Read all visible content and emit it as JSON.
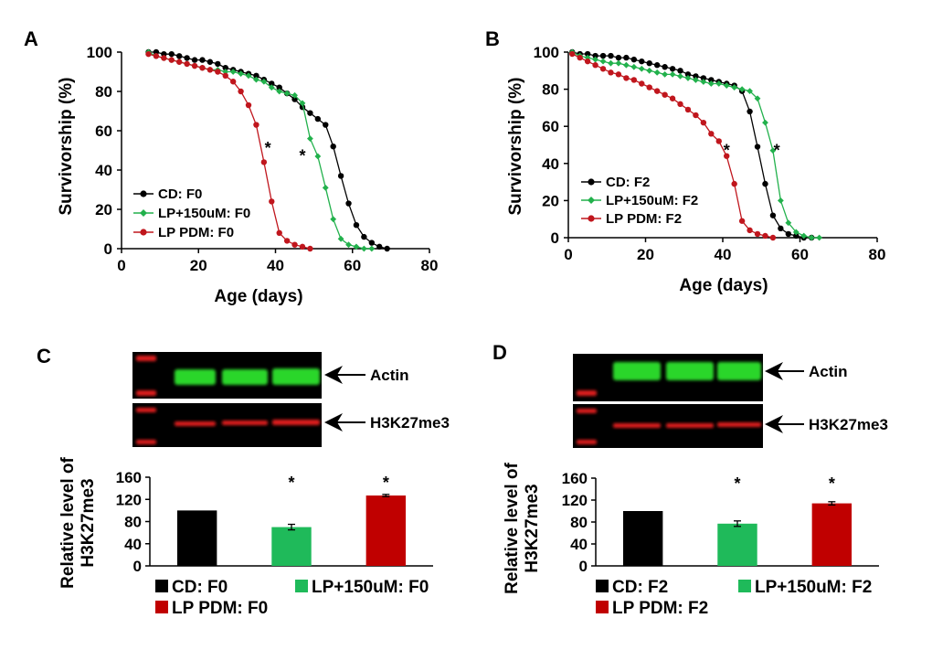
{
  "panels": {
    "A": "A",
    "B": "B",
    "C": "C",
    "D": "D"
  },
  "colors": {
    "cd": "#000000",
    "lp150": "#22b14c",
    "lppdm": "#c0161d",
    "bar_green": "#1fba5a",
    "bar_red": "#c00000",
    "blot_green": "#2ad62a",
    "blot_red": "#e01e1e"
  },
  "chart_data": [
    {
      "id": "A",
      "type": "line",
      "xlabel": "Age (days)",
      "ylabel": "Survivorship (%)",
      "xlim": [
        0,
        80
      ],
      "ylim": [
        0,
        100
      ],
      "xticks": [
        "0",
        "20",
        "40",
        "60",
        "80"
      ],
      "yticks": [
        "0",
        "20",
        "40",
        "60",
        "80",
        "100"
      ],
      "legend_position": "bottom-left",
      "series": [
        {
          "name": "CD: F0",
          "color": "#000000",
          "x": [
            7,
            9,
            11,
            13,
            15,
            17,
            19,
            21,
            23,
            25,
            27,
            29,
            31,
            33,
            35,
            37,
            39,
            41,
            43,
            45,
            47,
            49,
            51,
            53,
            55,
            57,
            59,
            61,
            63,
            65,
            67,
            69
          ],
          "y": [
            100,
            100,
            99,
            99,
            98,
            97,
            96,
            96,
            95,
            94,
            92,
            91,
            90,
            89,
            88,
            86,
            84,
            82,
            79,
            76,
            72,
            69,
            66,
            63,
            52,
            37,
            23,
            12,
            6,
            3,
            1,
            0
          ]
        },
        {
          "name": "LP+150uM: F0",
          "color": "#22b14c",
          "x": [
            7,
            9,
            11,
            13,
            15,
            17,
            19,
            21,
            23,
            25,
            27,
            29,
            31,
            33,
            35,
            37,
            39,
            41,
            43,
            45,
            47,
            49,
            51,
            53,
            55,
            57,
            59,
            61,
            63,
            65
          ],
          "y": [
            100,
            98,
            97,
            96,
            95,
            94,
            93,
            92,
            91,
            91,
            90,
            90,
            89,
            88,
            86,
            85,
            82,
            80,
            79,
            78,
            74,
            56,
            47,
            31,
            15,
            5,
            2,
            1,
            0,
            0
          ]
        },
        {
          "name": "LP PDM: F0",
          "color": "#c0161d",
          "x": [
            7,
            9,
            11,
            13,
            15,
            17,
            19,
            21,
            23,
            25,
            27,
            29,
            31,
            33,
            35,
            37,
            39,
            41,
            43,
            45,
            47,
            49
          ],
          "y": [
            99,
            98,
            97,
            96,
            95,
            94,
            93,
            92,
            91,
            90,
            88,
            85,
            80,
            73,
            63,
            44,
            24,
            8,
            4,
            2,
            1,
            0
          ]
        }
      ],
      "annotations": [
        {
          "text": "*",
          "x": 38,
          "y": 54
        },
        {
          "text": "*",
          "x": 47,
          "y": 50
        }
      ]
    },
    {
      "id": "B",
      "type": "line",
      "xlabel": "Age (days)",
      "ylabel": "Survivorship (%)",
      "xlim": [
        0,
        80
      ],
      "ylim": [
        0,
        100
      ],
      "xticks": [
        "0",
        "20",
        "40",
        "60",
        "80"
      ],
      "yticks": [
        "0",
        "20",
        "40",
        "60",
        "80",
        "100"
      ],
      "legend_position": "bottom-left",
      "series": [
        {
          "name": "CD: F2",
          "color": "#000000",
          "x": [
            1,
            3,
            5,
            7,
            9,
            11,
            13,
            15,
            17,
            19,
            21,
            23,
            25,
            27,
            29,
            31,
            33,
            35,
            37,
            39,
            41,
            43,
            45,
            47,
            49,
            51,
            53,
            55,
            57,
            59,
            61,
            63
          ],
          "y": [
            100,
            99,
            99,
            98,
            98,
            98,
            97,
            97,
            96,
            95,
            94,
            93,
            92,
            91,
            90,
            88,
            87,
            86,
            85,
            84,
            83,
            82,
            79,
            68,
            49,
            29,
            12,
            5,
            2,
            1,
            0,
            0
          ]
        },
        {
          "name": "LP+150uM: F2",
          "color": "#22b14c",
          "x": [
            1,
            3,
            5,
            7,
            9,
            11,
            13,
            15,
            17,
            19,
            21,
            23,
            25,
            27,
            29,
            31,
            33,
            35,
            37,
            39,
            41,
            43,
            45,
            47,
            49,
            51,
            53,
            55,
            57,
            59,
            61,
            63,
            65
          ],
          "y": [
            100,
            98,
            97,
            96,
            95,
            94,
            94,
            93,
            92,
            91,
            90,
            89,
            88,
            88,
            87,
            86,
            85,
            84,
            83,
            83,
            82,
            81,
            80,
            79,
            75,
            62,
            47,
            20,
            8,
            3,
            1,
            0,
            0
          ]
        },
        {
          "name": "LP PDM: F2",
          "color": "#c0161d",
          "x": [
            1,
            3,
            5,
            7,
            9,
            11,
            13,
            15,
            17,
            19,
            21,
            23,
            25,
            27,
            29,
            31,
            33,
            35,
            37,
            39,
            41,
            43,
            45,
            47,
            49,
            51,
            53
          ],
          "y": [
            99,
            97,
            95,
            93,
            91,
            89,
            88,
            86,
            85,
            83,
            81,
            79,
            77,
            75,
            72,
            69,
            66,
            62,
            56,
            52,
            44,
            29,
            9,
            4,
            2,
            1,
            0
          ]
        }
      ],
      "annotations": [
        {
          "text": "*",
          "x": 41,
          "y": 50
        },
        {
          "text": "*",
          "x": 54,
          "y": 50
        }
      ]
    },
    {
      "id": "C",
      "type": "bar",
      "ylabel_line1": "Relative level of",
      "ylabel_line2": "H3K27me3",
      "ylim": [
        0,
        160
      ],
      "yticks": [
        "0",
        "40",
        "80",
        "120",
        "160"
      ],
      "categories": [
        "CD: F0",
        "LP+150uM: F0",
        "LP PDM: F0"
      ],
      "values": [
        100,
        70,
        127
      ],
      "errors": [
        0,
        5,
        2
      ],
      "colors": [
        "#000000",
        "#1fba5a",
        "#c00000"
      ],
      "significance": [
        "",
        "*",
        "*"
      ]
    },
    {
      "id": "D",
      "type": "bar",
      "ylabel_line1": "Relative level of",
      "ylabel_line2": "H3K27me3",
      "ylim": [
        0,
        160
      ],
      "yticks": [
        "0",
        "40",
        "80",
        "120",
        "160"
      ],
      "categories": [
        "CD: F2",
        "LP+150uM: F2",
        "LP PDM: F2"
      ],
      "values": [
        100,
        77,
        114
      ],
      "errors": [
        0,
        5,
        3
      ],
      "colors": [
        "#000000",
        "#1fba5a",
        "#c00000"
      ],
      "significance": [
        "",
        "*",
        "*"
      ]
    }
  ],
  "blots": {
    "C": {
      "top_label": "Actin",
      "bottom_label": "H3K27me3"
    },
    "D": {
      "top_label": "Actin",
      "bottom_label": "H3K27me3"
    }
  }
}
